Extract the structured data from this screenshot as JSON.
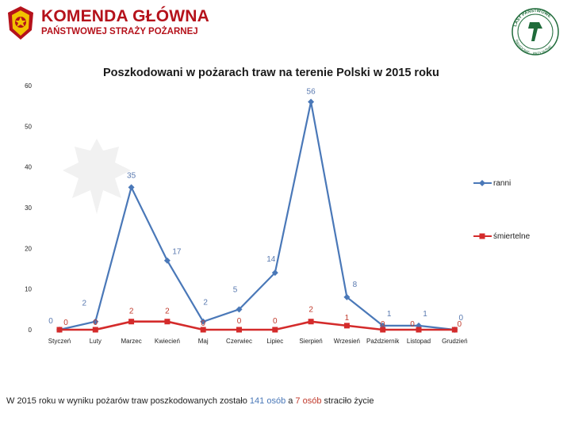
{
  "header": {
    "title": "KOMENDA GŁÓWNA",
    "subtitle": "PAŃSTWOWEJ STRAŻY POŻARNEJ",
    "brand_color": "#b5121b",
    "right_logo_top_text": "LASY PAŃSTWOWE",
    "right_logo_bottom_text": "ŚWIADOMIE · PRZYJAŹNIE"
  },
  "chart_data": {
    "type": "line",
    "title": "Poszkodowani w pożarach traw na terenie Polski w 2015 roku",
    "xlabel": "",
    "ylabel": "",
    "ylim": [
      0,
      60
    ],
    "yticks": [
      0,
      10,
      20,
      30,
      40,
      50,
      60
    ],
    "grid": false,
    "categories": [
      "Styczeń",
      "Luty",
      "Marzec",
      "Kwiecień",
      "Maj",
      "Czerwiec",
      "Lipiec",
      "Sierpień",
      "Wrzesień",
      "Październik",
      "Listopad",
      "Grudzień"
    ],
    "series": [
      {
        "name": "ranni",
        "color": "#4a78b8",
        "marker": "diamond",
        "values": [
          0,
          2,
          35,
          17,
          2,
          5,
          14,
          56,
          8,
          1,
          1,
          0
        ]
      },
      {
        "name": "śmiertelne",
        "color": "#d42b2b",
        "marker": "square",
        "values": [
          0,
          0,
          2,
          2,
          0,
          0,
          0,
          2,
          1,
          0,
          0,
          0
        ]
      }
    ],
    "legend_placement": "right"
  },
  "summary": {
    "text_before": "W 2015 roku w wyniku pożarów traw poszkodowanych zostało ",
    "injured": "141 osób",
    "text_middle": " a ",
    "dead": "7 osób",
    "text_after": " straciło życie"
  }
}
